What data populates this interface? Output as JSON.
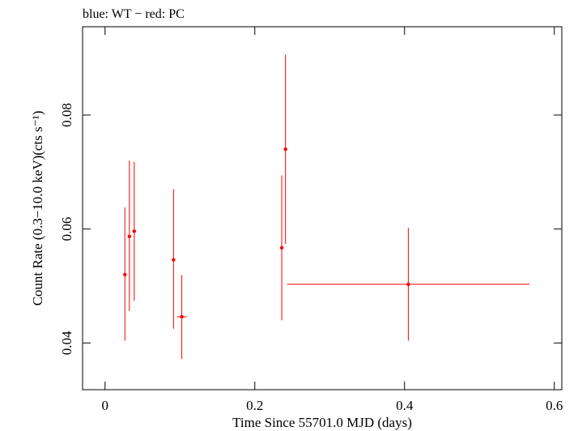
{
  "chart_data": {
    "type": "scatter",
    "title": "blue: WT − red: PC",
    "xlabel": "Time Since 55701.0 MJD (days)",
    "ylabel": "Count Rate (0.3−10.0 keV)(cts s⁻¹)",
    "xlim": [
      -0.03,
      0.61
    ],
    "ylim": [
      0.0318,
      0.0955
    ],
    "x_ticks": [
      0,
      0.2,
      0.4,
      0.6
    ],
    "x_tick_labels": [
      "0",
      "0.2",
      "0.4",
      "0.6"
    ],
    "y_ticks": [
      0.04,
      0.06,
      0.08
    ],
    "y_tick_labels": [
      "0.04",
      "0.06",
      "0.08"
    ],
    "grid": false,
    "series": [
      {
        "name": "PC",
        "color": "#ff0000",
        "points": [
          {
            "x": 0.0265,
            "xerr": 0.0015,
            "y": 0.052,
            "y_low": 0.0404,
            "y_high": 0.0638
          },
          {
            "x": 0.0325,
            "xerr": 0.0015,
            "y": 0.0587,
            "y_low": 0.0456,
            "y_high": 0.072
          },
          {
            "x": 0.039,
            "xerr": 0.0025,
            "y": 0.0596,
            "y_low": 0.0474,
            "y_high": 0.0718
          },
          {
            "x": 0.0915,
            "xerr": 0.0015,
            "y": 0.0546,
            "y_low": 0.0425,
            "y_high": 0.067
          },
          {
            "x": 0.1025,
            "xerr": 0.0065,
            "y": 0.0446,
            "y_low": 0.0372,
            "y_high": 0.0519
          },
          {
            "x": 0.236,
            "xerr": 0.001,
            "y": 0.0567,
            "y_low": 0.044,
            "y_high": 0.0694
          },
          {
            "x": 0.241,
            "xerr": 0.001,
            "y": 0.074,
            "y_low": 0.0574,
            "y_high": 0.0906
          },
          {
            "x": 0.405,
            "xerr": 0.162,
            "y": 0.0503,
            "y_low": 0.0404,
            "y_high": 0.0602
          }
        ]
      }
    ]
  }
}
